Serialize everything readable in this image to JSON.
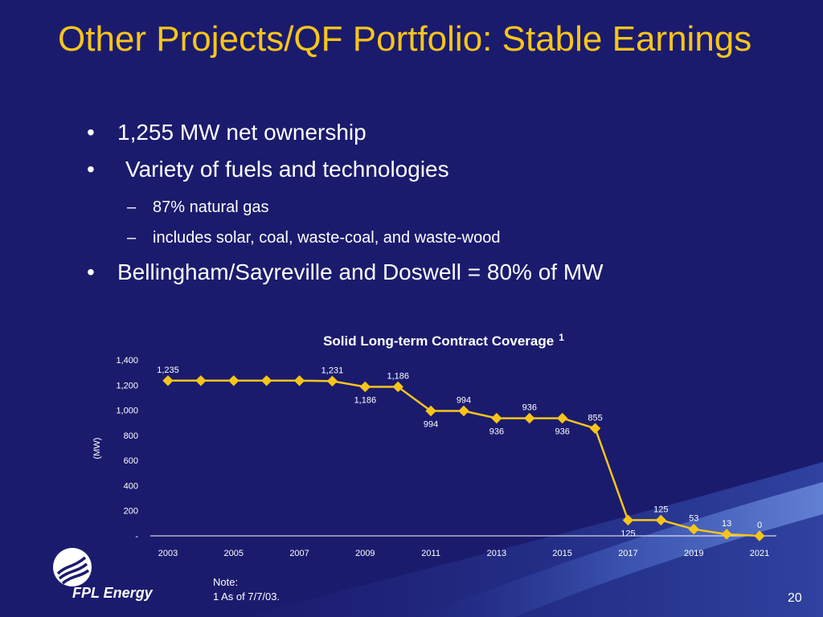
{
  "slide": {
    "title": "Other Projects/QF Portfolio: Stable Earnings",
    "bullets": [
      "1,255 MW net ownership",
      "Variety of fuels and technologies",
      "Bellingham/Sayreville and Doswell = 80% of MW"
    ],
    "sub_bullets": [
      "87% natural gas",
      "includes solar, coal, waste-coal, and waste-wood"
    ],
    "note_heading": "Note:",
    "note_text": "1 As of 7/7/03.",
    "page_number": "20",
    "logo_text": "FPL Energy",
    "colors": {
      "background": "#1b1b6e",
      "title": "#f7c51a",
      "series": "#f7c51a"
    }
  },
  "chart_data": {
    "type": "line",
    "title": "Solid Long-term Contract Coverage",
    "title_superscript": "1",
    "ylabel": "(MW)",
    "ylim": [
      0,
      1400
    ],
    "yticks": [
      {
        "value": 0,
        "label": "-"
      },
      {
        "value": 200,
        "label": "200"
      },
      {
        "value": 400,
        "label": "400"
      },
      {
        "value": 600,
        "label": "600"
      },
      {
        "value": 800,
        "label": "800"
      },
      {
        "value": 1000,
        "label": "1,000"
      },
      {
        "value": 1200,
        "label": "1,200"
      },
      {
        "value": 1400,
        "label": "1,400"
      }
    ],
    "xticks": [
      "2003",
      "2005",
      "2007",
      "2009",
      "2011",
      "2013",
      "2015",
      "2017",
      "2019",
      "2021"
    ],
    "x": [
      2003,
      2004,
      2005,
      2006,
      2007,
      2008,
      2009,
      2010,
      2011,
      2012,
      2013,
      2014,
      2015,
      2016,
      2017,
      2018,
      2019,
      2020,
      2021
    ],
    "values": [
      1235,
      1235,
      1235,
      1235,
      1235,
      1231,
      1186,
      1186,
      994,
      994,
      936,
      936,
      936,
      855,
      125,
      125,
      53,
      13,
      0
    ],
    "data_labels": [
      {
        "x": 2003,
        "text": "1,235",
        "pos": "above"
      },
      {
        "x": 2008,
        "text": "1,231",
        "pos": "above"
      },
      {
        "x": 2009,
        "text": "1,186",
        "pos": "below"
      },
      {
        "x": 2010,
        "text": "1,186",
        "pos": "above"
      },
      {
        "x": 2011,
        "text": "994",
        "pos": "below"
      },
      {
        "x": 2012,
        "text": "994",
        "pos": "above"
      },
      {
        "x": 2013,
        "text": "936",
        "pos": "below"
      },
      {
        "x": 2014,
        "text": "936",
        "pos": "above"
      },
      {
        "x": 2015,
        "text": "936",
        "pos": "below"
      },
      {
        "x": 2016,
        "text": "855",
        "pos": "above"
      },
      {
        "x": 2017,
        "text": "125",
        "pos": "below"
      },
      {
        "x": 2018,
        "text": "125",
        "pos": "above"
      },
      {
        "x": 2019,
        "text": "53",
        "pos": "above"
      },
      {
        "x": 2020,
        "text": "13",
        "pos": "above"
      },
      {
        "x": 2021,
        "text": "0",
        "pos": "above"
      }
    ],
    "grid": false,
    "legend": "none"
  }
}
